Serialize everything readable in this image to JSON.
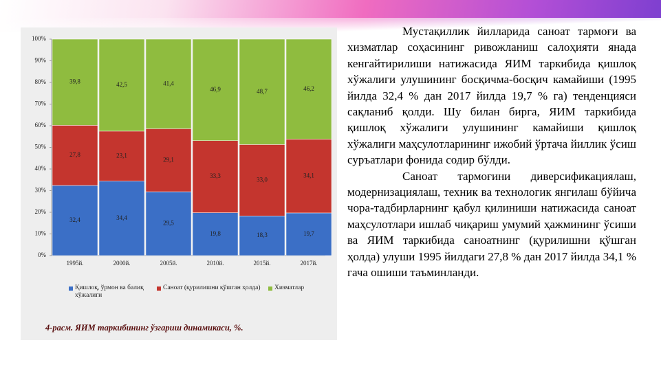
{
  "chart_data": {
    "type": "stacked_bar",
    "categories": [
      "1995й.",
      "2000й.",
      "2005й.",
      "2010й.",
      "2015й.",
      "2017й."
    ],
    "series": [
      {
        "name": "Қишлоқ, ўрмон ва балиқ хўжалиги",
        "color": "#3b6fc6",
        "values": [
          32.4,
          34.4,
          29.5,
          19.8,
          18.3,
          19.7
        ],
        "value_labels": [
          "32,4",
          "34,4",
          "29,5",
          "19,8",
          "18,3",
          "19,7"
        ]
      },
      {
        "name": "Саноат (қурилишни қўшган ҳолда)",
        "color": "#c4352e",
        "values": [
          27.8,
          23.1,
          29.1,
          33.3,
          33.0,
          34.1
        ],
        "value_labels": [
          "27,8",
          "23,1",
          "29,1",
          "33,3",
          "33,0",
          "34,1"
        ]
      },
      {
        "name": "Хизматлар",
        "color": "#8fbc3f",
        "values": [
          39.8,
          42.5,
          41.4,
          46.9,
          48.7,
          46.2
        ],
        "value_labels": [
          "39,8",
          "42,5",
          "41,4",
          "46,9",
          "48,7",
          "46,2"
        ]
      }
    ],
    "ylim": [
      0,
      100
    ],
    "yticks": [
      {
        "value": 0,
        "label": "0%"
      },
      {
        "value": 10,
        "label": "10%"
      },
      {
        "value": 20,
        "label": "20%"
      },
      {
        "value": 30,
        "label": "30%"
      },
      {
        "value": 40,
        "label": "40%"
      },
      {
        "value": 50,
        "label": "50%"
      },
      {
        "value": 60,
        "label": "60%"
      },
      {
        "value": 70,
        "label": "70%"
      },
      {
        "value": 80,
        "label": "80%"
      },
      {
        "value": 90,
        "label": "90%"
      },
      {
        "value": 100,
        "label": "100%"
      }
    ]
  },
  "caption": "4-расм. ЯИМ таркибининг ўзгариш динамикаси, %.",
  "paragraphs": [
    "Мустақиллик йилларида саноат тармоғи ва хизматлар соҳасининг ривожланиш салоҳияти янада кенгайтирилиши натижасида ЯИМ таркибида қишлоқ хўжалиги улушининг босқичма-босқич камайиши (1995 йилда 32,4 % дан 2017 йилда 19,7 % га) тенденцияси сақланиб қолди. Шу билан бирга, ЯИМ таркибида қишлоқ хўжалиги улушининг камайиши қишлоқ хўжалиги маҳсулотларининг ижобий ўртача йиллик ўсиш суръатлари фонида содир бўлди.",
    "Саноат тармоғини диверсификациялаш, модернизациялаш, техник ва технологик янгилаш бўйича чора-тадбирларнинг қабул қилиниши натижасида саноат маҳсулотлари ишлаб чиқариш умумий ҳажмининг ўсиши ва ЯИМ таркибида саноатнинг (қурилишни қўшган ҳолда) улуши 1995 йилдаги 27,8 % дан 2017 йилда 34,1 % гача ошиши таъминланди."
  ]
}
